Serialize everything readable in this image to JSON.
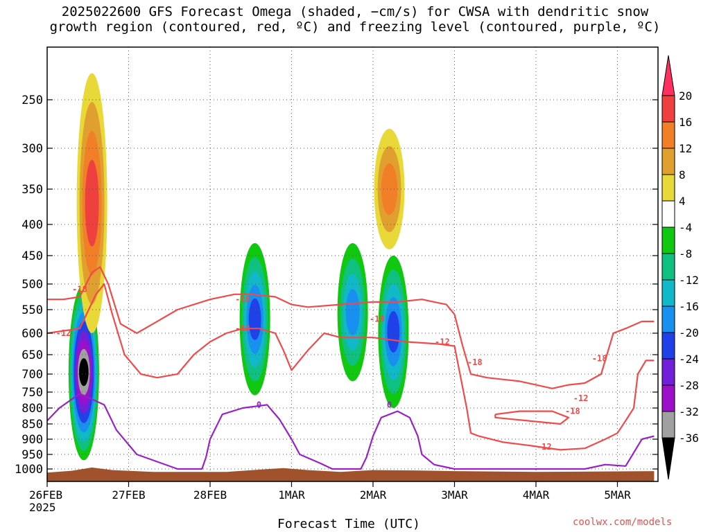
{
  "title": {
    "line1": "2025022600 GFS Forecast Omega (shaded, −cm/s) for CWSA with dendritic snow",
    "line2": "growth region (contoured, red, ºC) and freezing level (contoured, purple, ºC)"
  },
  "xlabel": "Forecast Time (UTC)",
  "credit": "coolwx.com/models",
  "chart_data": {
    "type": "heatmap",
    "x_ticks": [
      "26FEB\n2025",
      "27FEB",
      "28FEB",
      "1MAR",
      "2MAR",
      "3MAR",
      "4MAR",
      "5MAR"
    ],
    "x_range_days": [
      0,
      7.45
    ],
    "y_axis": "pressure (hPa), inverted",
    "y_ticks": [
      250,
      300,
      350,
      400,
      450,
      500,
      550,
      600,
      650,
      700,
      750,
      800,
      850,
      900,
      950,
      1000
    ],
    "colorbar": {
      "labels": [
        20,
        16,
        12,
        8,
        4,
        -4,
        -8,
        -12,
        -16,
        -20,
        -24,
        -28,
        -32,
        -36
      ],
      "colors": [
        "#ff2f5f",
        "#ef4040",
        "#f07f28",
        "#e0a030",
        "#e8d838",
        "#ffffff",
        "#10c810",
        "#10c080",
        "#10b8c8",
        "#1890f0",
        "#2040e8",
        "#7020d8",
        "#9b10c8",
        "#a0a0a0",
        "#000000"
      ]
    },
    "contour_labels": [
      {
        "label": "-18",
        "t": 0.4,
        "p": 510,
        "color": "#f04a4a"
      },
      {
        "label": "-12",
        "t": 0.2,
        "p": 600,
        "color": "#f04a4a"
      },
      {
        "label": "-18",
        "t": 2.4,
        "p": 530,
        "color": "#f04a4a"
      },
      {
        "label": "-12",
        "t": 2.4,
        "p": 590,
        "color": "#f04a4a"
      },
      {
        "label": "-18",
        "t": 4.05,
        "p": 570,
        "color": "#f04a4a"
      },
      {
        "label": "-12",
        "t": 4.85,
        "p": 620,
        "color": "#f04a4a"
      },
      {
        "label": "-18",
        "t": 5.25,
        "p": 670,
        "color": "#f04a4a"
      },
      {
        "label": "-18",
        "t": 6.45,
        "p": 810,
        "color": "#f04a4a"
      },
      {
        "label": "-18",
        "t": 6.78,
        "p": 660,
        "color": "#f04a4a"
      },
      {
        "label": "-12",
        "t": 6.55,
        "p": 770,
        "color": "#f04a4a"
      },
      {
        "label": "-12",
        "t": 6.1,
        "p": 925,
        "color": "#f04a4a"
      },
      {
        "label": "0",
        "t": 2.6,
        "p": 790,
        "color": "#9920c8"
      },
      {
        "label": "0",
        "t": 4.2,
        "p": 790,
        "color": "#9920c8"
      }
    ],
    "freezing_level_0C": [
      [
        0,
        840
      ],
      [
        0.15,
        800
      ],
      [
        0.4,
        755
      ],
      [
        0.7,
        790
      ],
      [
        0.85,
        870
      ],
      [
        1.1,
        950
      ],
      [
        1.6,
        1000
      ],
      [
        1.9,
        1000
      ],
      [
        1.95,
        960
      ],
      [
        2.0,
        900
      ],
      [
        2.15,
        820
      ],
      [
        2.4,
        800
      ],
      [
        2.7,
        790
      ],
      [
        2.85,
        835
      ],
      [
        3.0,
        900
      ],
      [
        3.1,
        950
      ],
      [
        3.35,
        980
      ],
      [
        3.5,
        1000
      ],
      [
        3.85,
        1000
      ],
      [
        3.92,
        960
      ],
      [
        4.0,
        890
      ],
      [
        4.1,
        830
      ],
      [
        4.3,
        810
      ],
      [
        4.45,
        830
      ],
      [
        4.55,
        890
      ],
      [
        4.6,
        950
      ],
      [
        4.75,
        985
      ],
      [
        5.0,
        1000
      ],
      [
        6.6,
        1000
      ],
      [
        6.85,
        985
      ],
      [
        7.1,
        990
      ],
      [
        7.3,
        900
      ],
      [
        7.45,
        890
      ]
    ],
    "isotherm_minus12": [
      [
        0,
        600
      ],
      [
        0.2,
        595
      ],
      [
        0.4,
        590
      ],
      [
        0.6,
        520
      ],
      [
        0.7,
        500
      ],
      [
        0.8,
        560
      ],
      [
        0.95,
        650
      ],
      [
        1.15,
        700
      ],
      [
        1.35,
        710
      ],
      [
        1.6,
        700
      ],
      [
        1.8,
        650
      ],
      [
        2.0,
        620
      ],
      [
        2.2,
        600
      ],
      [
        2.4,
        590
      ],
      [
        2.6,
        590
      ],
      [
        2.8,
        600
      ],
      [
        2.9,
        640
      ],
      [
        3.0,
        690
      ],
      [
        3.2,
        640
      ],
      [
        3.4,
        600
      ],
      [
        3.6,
        610
      ],
      [
        4.0,
        610
      ],
      [
        4.4,
        620
      ],
      [
        4.8,
        625
      ],
      [
        5.0,
        630
      ],
      [
        5.15,
        800
      ],
      [
        5.2,
        880
      ],
      [
        5.3,
        890
      ],
      [
        5.6,
        910
      ],
      [
        5.9,
        920
      ],
      [
        6.3,
        935
      ],
      [
        6.6,
        930
      ],
      [
        6.85,
        900
      ],
      [
        7.0,
        880
      ],
      [
        7.1,
        840
      ],
      [
        7.2,
        800
      ],
      [
        7.25,
        700
      ],
      [
        7.35,
        665
      ],
      [
        7.45,
        665
      ]
    ],
    "isotherm_minus18": [
      [
        0,
        530
      ],
      [
        0.2,
        530
      ],
      [
        0.4,
        525
      ],
      [
        0.55,
        480
      ],
      [
        0.65,
        470
      ],
      [
        0.75,
        500
      ],
      [
        0.9,
        580
      ],
      [
        1.1,
        600
      ],
      [
        1.3,
        580
      ],
      [
        1.6,
        550
      ],
      [
        2.0,
        530
      ],
      [
        2.3,
        520
      ],
      [
        2.5,
        520
      ],
      [
        2.8,
        525
      ],
      [
        3.0,
        540
      ],
      [
        3.2,
        545
      ],
      [
        3.6,
        540
      ],
      [
        4.0,
        535
      ],
      [
        4.3,
        535
      ],
      [
        4.6,
        530
      ],
      [
        4.9,
        540
      ],
      [
        5.0,
        560
      ],
      [
        5.1,
        630
      ],
      [
        5.2,
        700
      ],
      [
        5.4,
        710
      ],
      [
        5.6,
        715
      ],
      [
        5.8,
        720
      ],
      [
        6.0,
        730
      ],
      [
        6.2,
        740
      ],
      [
        6.4,
        730
      ],
      [
        6.6,
        725
      ],
      [
        6.8,
        700
      ],
      [
        6.95,
        600
      ],
      [
        7.1,
        590
      ],
      [
        7.3,
        575
      ],
      [
        7.45,
        575
      ]
    ],
    "isotherm_minus18_closed": [
      [
        5.5,
        820
      ],
      [
        5.8,
        810
      ],
      [
        6.2,
        810
      ],
      [
        6.4,
        830
      ],
      [
        6.3,
        850
      ],
      [
        5.9,
        840
      ],
      [
        5.5,
        830
      ],
      [
        5.5,
        820
      ]
    ],
    "omega_features": [
      {
        "t": 0.45,
        "p_top": 500,
        "p_bot": 970,
        "peak": -36
      },
      {
        "t": 0.55,
        "p_top": 230,
        "p_bot": 600,
        "peak": 16
      },
      {
        "t": 2.55,
        "p_top": 430,
        "p_bot": 760,
        "peak": -20
      },
      {
        "t": 3.75,
        "p_top": 430,
        "p_bot": 720,
        "peak": -16
      },
      {
        "t": 4.2,
        "p_top": 280,
        "p_bot": 440,
        "peak": 12
      },
      {
        "t": 4.25,
        "p_top": 450,
        "p_bot": 800,
        "peak": -20
      }
    ]
  }
}
